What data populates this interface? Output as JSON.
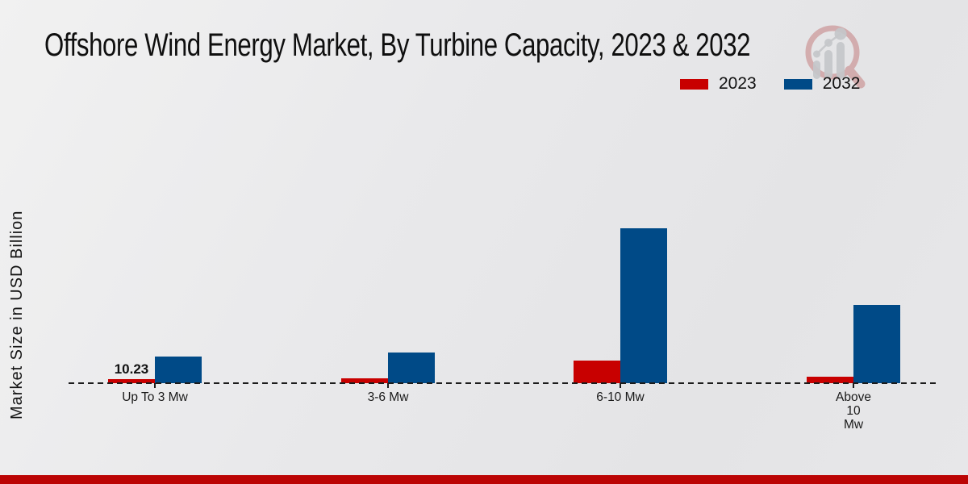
{
  "title": "Offshore Wind Energy Market, By Turbine Capacity, 2023 & 2032",
  "colors": {
    "series_2023": "#c80000",
    "series_2032": "#004a87",
    "footer_strip": "#bb0404",
    "axis": "#1c1c1c"
  },
  "watermark_icon": "magnifier-bar-chart-logo",
  "chart_data": {
    "type": "bar",
    "title": "Offshore Wind Energy Market, By Turbine Capacity, 2023 & 2032",
    "xlabel": "",
    "ylabel": "Market Size in USD Billion",
    "categories": [
      "Up To 3 Mw",
      "3-6 Mw",
      "6-10 Mw",
      "Above 10 Mw"
    ],
    "category_label_lines": [
      [
        "Up To 3 Mw"
      ],
      [
        "3-6 Mw"
      ],
      [
        "6-10 Mw"
      ],
      [
        "Above",
        "10",
        "Mw"
      ]
    ],
    "series": [
      {
        "name": "2023",
        "color": "#c80000",
        "values": [
          10.23,
          12.3,
          57.3,
          16.4
        ]
      },
      {
        "name": "2032",
        "color": "#004a87",
        "values": [
          67.5,
          77.7,
          391.8,
          197.4
        ]
      }
    ],
    "value_labels": [
      {
        "series": "2023",
        "category_index": 0,
        "text": "10.23"
      }
    ],
    "ylim": [
      0,
      400
    ],
    "grid": false,
    "legend_position": "top-right",
    "baseline_style": "dashed",
    "y_axis_ticks_visible": false
  }
}
